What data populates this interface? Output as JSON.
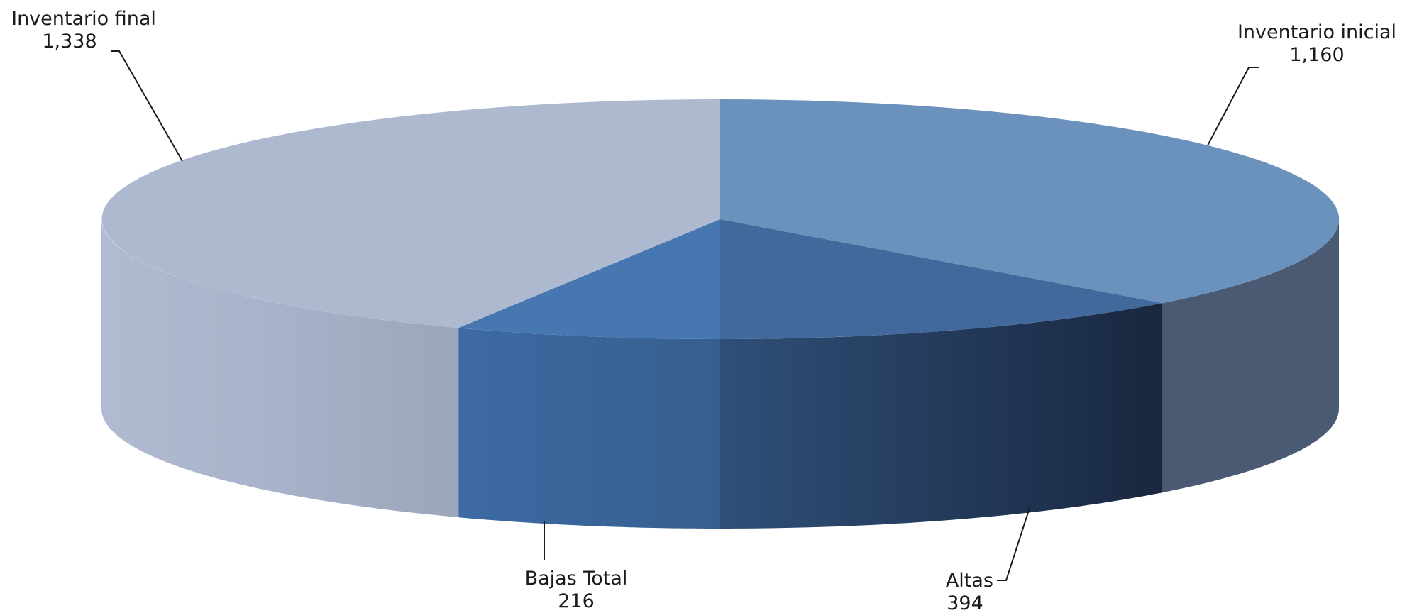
{
  "chart_data": {
    "type": "pie",
    "three_d": true,
    "legend": "none",
    "data_labels": "category name and value, outside with leader lines",
    "slices": [
      {
        "name": "Inventario inicial",
        "value": 1160,
        "value_label": "1,160",
        "color": "#6b91bd"
      },
      {
        "name": "Altas",
        "value": 394,
        "value_label": "394",
        "color": "#41699c"
      },
      {
        "name": "Bajas Total",
        "value": 216,
        "value_label": "216",
        "color": "#4677b1"
      },
      {
        "name": "Inventario final",
        "value": 1338,
        "value_label": "1,338",
        "color": "#adb9cf"
      }
    ]
  }
}
